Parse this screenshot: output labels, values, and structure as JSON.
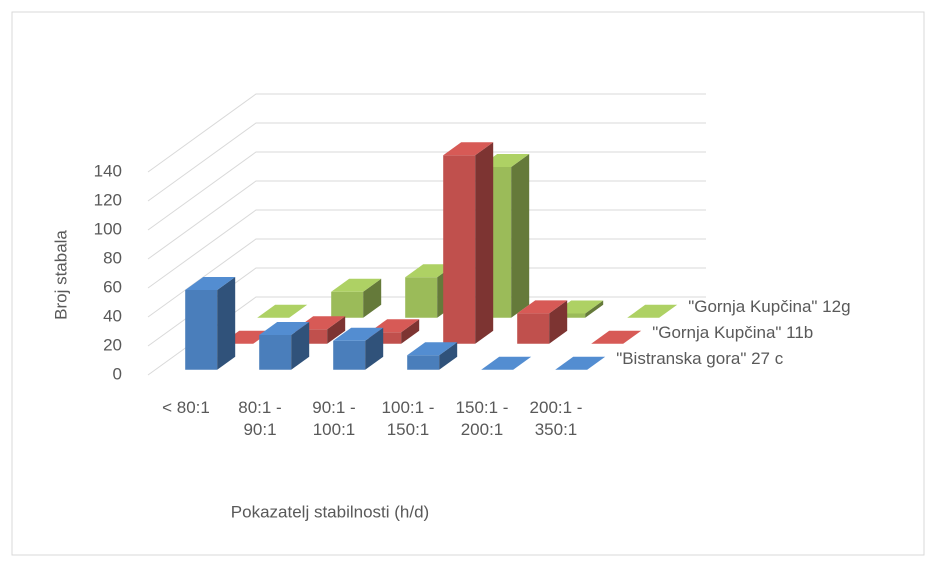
{
  "chart_data": {
    "type": "bar3d",
    "y_label": "Broj stabala",
    "x_label": "Pokazatelj stabilnosti (h/d)",
    "categories": [
      "< 80:1",
      "80:1 - 90:1",
      "90:1 - 100:1",
      "100:1 - 150:1",
      "150:1 - 200:1",
      "200:1 - 350:1"
    ],
    "series": [
      {
        "name": "\"Bistranska gora\" 27 c",
        "color": "#4a7ebb",
        "values": [
          55,
          24,
          20,
          10,
          0,
          0
        ]
      },
      {
        "name": "\"Gornja Kupčina\" 11b",
        "color": "#c0504d",
        "values": [
          0,
          10,
          8,
          130,
          21,
          0
        ]
      },
      {
        "name": "\"Gornja Kupčina\" 12g",
        "color": "#9bbb59",
        "values": [
          0,
          18,
          28,
          104,
          3,
          0
        ]
      }
    ],
    "ylim": [
      0,
      140
    ],
    "yticks": [
      0,
      20,
      40,
      60,
      80,
      100,
      120,
      140
    ],
    "grid": true
  }
}
